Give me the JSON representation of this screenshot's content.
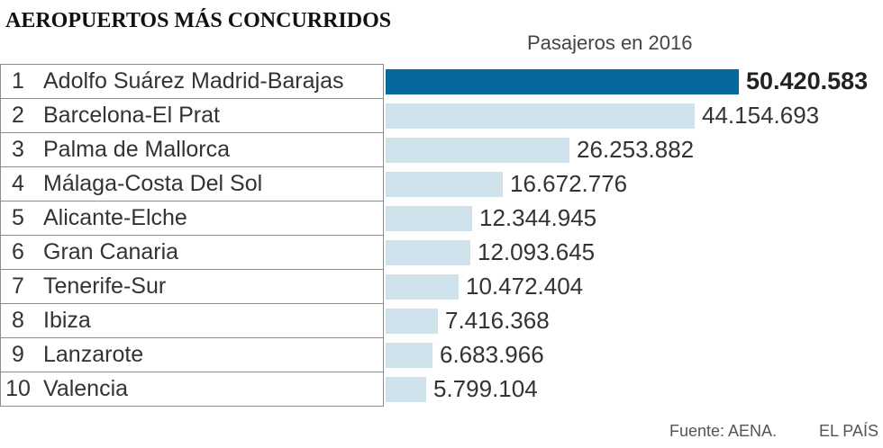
{
  "chart_data": {
    "type": "bar",
    "orientation": "horizontal",
    "title": "AEROPUERTOS MÁS CONCURRIDOS",
    "subtitle": "Pasajeros en 2016",
    "ranks": [
      "1",
      "2",
      "3",
      "4",
      "5",
      "6",
      "7",
      "8",
      "9",
      "10"
    ],
    "categories": [
      "Adolfo Suárez Madrid-Barajas",
      "Barcelona-El Prat",
      "Palma de Mallorca",
      "Málaga-Costa Del Sol",
      "Alicante-Elche",
      "Gran Canaria",
      "Tenerife-Sur",
      "Ibiza",
      "Lanzarote",
      "Valencia"
    ],
    "values": [
      50420583,
      44154693,
      26253882,
      16672776,
      12344945,
      12093645,
      10472404,
      7416368,
      6683966,
      5799104
    ],
    "highlight_index": 0,
    "colors": {
      "highlight": "#06689c",
      "bar": "#cfe2ec"
    },
    "grid": false,
    "legend": "none"
  },
  "footer": {
    "source": "Fuente: AENA.",
    "brand": "EL PAÍS"
  }
}
